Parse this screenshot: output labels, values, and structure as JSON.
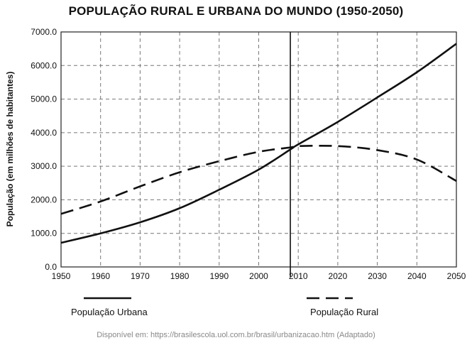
{
  "chart_data": {
    "type": "line",
    "title": "POPULAÇÃO RURAL E URBANA DO MUNDO (1950-2050)",
    "ylabel": "População (em milhões de habitantes)",
    "xlabel": "",
    "xlim": [
      1950,
      2050
    ],
    "ylim": [
      0,
      7000
    ],
    "x_ticks": [
      "1950",
      "1960",
      "1970",
      "1980",
      "1990",
      "2000",
      "2010",
      "2020",
      "2030",
      "2040",
      "2050"
    ],
    "y_ticks": [
      "0.0",
      "1000.0",
      "2000.0",
      "3000.0",
      "4000.0",
      "5000.0",
      "6000.0",
      "7000.0"
    ],
    "grid": true,
    "vertical_marker_x": 2008,
    "series": [
      {
        "name": "População Urbana",
        "style": "solid",
        "x": [
          1950,
          1960,
          1970,
          1980,
          1990,
          2000,
          2008,
          2010,
          2020,
          2030,
          2040,
          2050
        ],
        "y": [
          720,
          1000,
          1330,
          1750,
          2300,
          2900,
          3500,
          3650,
          4320,
          5050,
          5800,
          6650
        ]
      },
      {
        "name": "População Rural",
        "style": "dashed",
        "x": [
          1950,
          1960,
          1970,
          1980,
          1990,
          2000,
          2008,
          2010,
          2020,
          2030,
          2040,
          2050
        ],
        "y": [
          1580,
          1950,
          2400,
          2820,
          3150,
          3430,
          3560,
          3600,
          3600,
          3480,
          3200,
          2560
        ]
      }
    ]
  },
  "legend": {
    "urban_label": "População Urbana",
    "rural_label": "População Rural"
  },
  "source": "Disponível em: https://brasilescola.uol.com.br/brasil/urbanizacao.htm (Adaptado)"
}
